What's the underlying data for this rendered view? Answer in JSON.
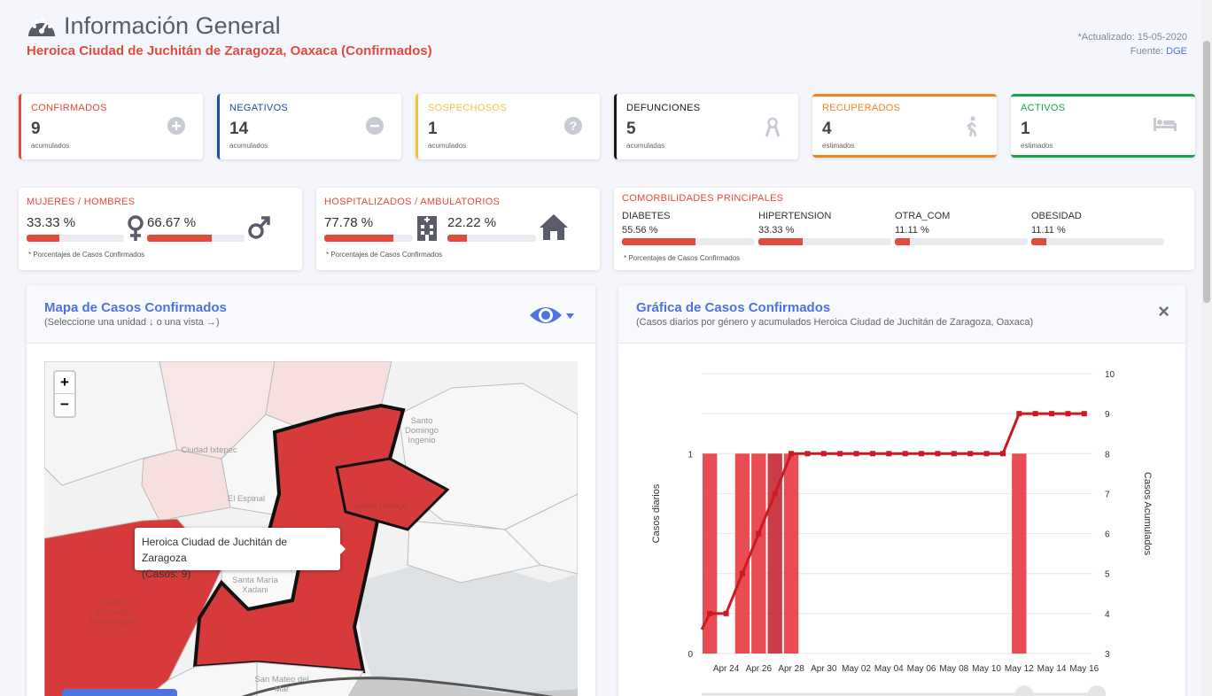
{
  "header": {
    "title": "Información General",
    "subtitle": "Heroica Ciudad de Juchitán de Zaragoza, Oaxaca (Confirmados)",
    "updated": "*Actualizado: 15-05-2020",
    "source_label": "Fuente:",
    "source_value": "DGE"
  },
  "stats": [
    {
      "label": "CONFIRMADOS",
      "value": "9",
      "unit": "acumulados",
      "color": "#e24b3b",
      "icon": "plus-circle-icon"
    },
    {
      "label": "NEGATIVOS",
      "value": "14",
      "unit": "acumulados",
      "color": "#1f4fa8",
      "icon": "minus-circle-icon"
    },
    {
      "label": "SOSPECHOSOS",
      "value": "1",
      "unit": "acumulados",
      "color": "#f6c23e",
      "icon": "question-circle-icon"
    },
    {
      "label": "DEFUNCIONES",
      "value": "5",
      "unit": "acumuladas",
      "color": "#1a1a1a",
      "icon": "ribbon-icon"
    },
    {
      "label": "RECUPERADOS",
      "value": "4",
      "unit": "estimados",
      "color": "#f08422",
      "icon": "walking-icon"
    },
    {
      "label": "ACTIVOS",
      "value": "1",
      "unit": "estimados",
      "color": "#1aa24a",
      "icon": "bed-icon"
    }
  ],
  "gender": {
    "title": "MUJERES / HOMBRES",
    "women_pct": "33.33 %",
    "women_frac": 0.3333,
    "men_pct": "66.67 %",
    "men_frac": 0.6667,
    "footnote": "* Porcentajes  de Casos Confirmados"
  },
  "hosp": {
    "title": "HOSPITALIZADOS / AMBULATORIOS",
    "hosp_pct": "77.78 %",
    "hosp_frac": 0.7778,
    "amb_pct": "22.22 %",
    "amb_frac": 0.2222,
    "footnote": "* Porcentajes  de Casos Confirmados"
  },
  "comorb": {
    "title": "COMORBILIDADES PRINCIPALES",
    "items": [
      {
        "label": "DIABETES",
        "pct": "55.56 %",
        "frac": 0.5556
      },
      {
        "label": "HIPERTENSION",
        "pct": "33.33 %",
        "frac": 0.3333
      },
      {
        "label": "OTRA_COM",
        "pct": "11.11 %",
        "frac": 0.1111
      },
      {
        "label": "OBESIDAD",
        "pct": "11.11 %",
        "frac": 0.1111
      }
    ],
    "footnote": "* Porcentajes  de Casos Confirmados"
  },
  "map_card": {
    "title": "Mapa de Casos Confirmados",
    "subtitle": "(Seleccione una unidad ↓ o una vista →)",
    "zoom_in": "+",
    "zoom_out": "−",
    "tooltip_name": "Heroica Ciudad de Juchitán de Zaragoza",
    "tooltip_cases": "(Casos: 9)",
    "place_labels": [
      "Santo Domingo Ingenio",
      "Ciudad Ixtepec",
      "El Espinal",
      "Santa María Xadani",
      "Santo Domingo Tehuantepec",
      "San Mateo del Mar",
      "Unión Hidalgo"
    ]
  },
  "chart_card": {
    "title": "Gráfica de Casos Confirmados",
    "subtitle": "(Casos diarios por género y acumulados Heroica Ciudad de Juchitán de Zaragoza, Oaxaca)",
    "close": "×"
  },
  "chart_data": {
    "type": "bar",
    "ylabel": "Casos diarios",
    "y2label": "Casos Acumulados",
    "ylim": [
      0,
      1
    ],
    "y_ticks": [
      "0",
      "1"
    ],
    "y2lim": [
      3,
      10
    ],
    "y2_ticks": [
      "3",
      "4",
      "5",
      "6",
      "7",
      "8",
      "9",
      "10"
    ],
    "x_tick_labels": [
      "Apr 24",
      "Apr 26",
      "Apr 28",
      "Apr 30",
      "May 02",
      "May 04",
      "May 06",
      "May 08",
      "May 10",
      "May 12",
      "May 14",
      "May 16"
    ],
    "days": [
      "Apr 23",
      "Apr 24",
      "Apr 25",
      "Apr 26",
      "Apr 27",
      "Apr 28",
      "Apr 29",
      "Apr 30",
      "May 01",
      "May 02",
      "May 03",
      "May 04",
      "May 05",
      "May 06",
      "May 07",
      "May 08",
      "May 09",
      "May 10",
      "May 11",
      "May 12",
      "May 13",
      "May 14",
      "May 15",
      "May 16"
    ],
    "series": [
      {
        "name": "Casos diarios",
        "color": "#e8434a",
        "values": [
          1,
          0,
          1,
          1,
          1,
          1,
          0,
          0,
          0,
          0,
          0,
          0,
          0,
          0,
          0,
          0,
          0,
          0,
          0,
          1,
          0,
          0,
          0,
          0
        ]
      },
      {
        "name": "Casos Acumulados",
        "color": "#cc1a22",
        "values": [
          4,
          4,
          5,
          6,
          7,
          8,
          8,
          8,
          8,
          8,
          8,
          8,
          8,
          8,
          8,
          8,
          8,
          8,
          8,
          9,
          9,
          9,
          9,
          9
        ]
      }
    ]
  }
}
